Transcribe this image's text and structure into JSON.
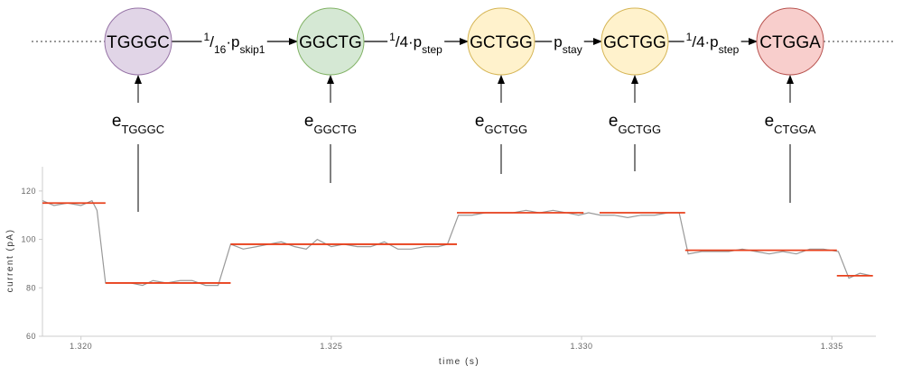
{
  "diagram": {
    "nodes": [
      {
        "label": "TGGGC",
        "fill": "#e1d5e7",
        "stroke": "#9673a6"
      },
      {
        "label": "GGCTG",
        "fill": "#d5e8d4",
        "stroke": "#82b366"
      },
      {
        "label": "GCTGG",
        "fill": "#fff2cc",
        "stroke": "#d6b656"
      },
      {
        "label": "GCTGG",
        "fill": "#fff2cc",
        "stroke": "#d6b656"
      },
      {
        "label": "CTGGA",
        "fill": "#f8cecc",
        "stroke": "#b85450"
      }
    ],
    "edges": [
      {
        "parts": [
          {
            "text": "1",
            "style": "super"
          },
          {
            "text": "/"
          },
          {
            "text": "16",
            "style": "sub"
          },
          {
            "text": "·p"
          },
          {
            "text": "skip1",
            "style": "sub"
          }
        ]
      },
      {
        "parts": [
          {
            "text": "1",
            "style": "super"
          },
          {
            "text": "/4·p"
          },
          {
            "text": "step",
            "style": "sub"
          }
        ]
      },
      {
        "parts": [
          {
            "text": "p"
          },
          {
            "text": "stay",
            "style": "sub"
          }
        ]
      },
      {
        "parts": [
          {
            "text": "1",
            "style": "super"
          },
          {
            "text": "/4·p"
          },
          {
            "text": "step",
            "style": "sub"
          }
        ]
      }
    ],
    "emissions": [
      {
        "base": "e",
        "sub": "TGGGC"
      },
      {
        "base": "e",
        "sub": "GGCTG"
      },
      {
        "base": "e",
        "sub": "GCTGG"
      },
      {
        "base": "e",
        "sub": "GCTGG"
      },
      {
        "base": "e",
        "sub": "CTGGA"
      }
    ]
  },
  "chart_data": {
    "type": "line",
    "xlabel": "time (s)",
    "ylabel": "current (pA)",
    "xlim": [
      1.31923,
      1.33588
    ],
    "ylim": [
      60,
      130
    ],
    "xticks": [
      {
        "value": 1.32,
        "label": "1.320"
      },
      {
        "value": 1.325,
        "label": "1.325"
      },
      {
        "value": 1.33,
        "label": "1.330"
      },
      {
        "value": 1.335,
        "label": "1.335"
      }
    ],
    "yticks": [
      60,
      80,
      100,
      120
    ],
    "signal": {
      "color": "#999999",
      "x": [
        1.31923,
        1.31946,
        1.31973,
        1.32,
        1.32022,
        1.32032,
        1.32049,
        1.32072,
        1.32099,
        1.32123,
        1.32144,
        1.32171,
        1.32198,
        1.32222,
        1.32249,
        1.32274,
        1.32299,
        1.32324,
        1.32351,
        1.32375,
        1.324,
        1.32427,
        1.3245,
        1.32472,
        1.325,
        1.32525,
        1.32552,
        1.32579,
        1.32606,
        1.32633,
        1.3266,
        1.32687,
        1.32714,
        1.32732,
        1.32754,
        1.32781,
        1.32808,
        1.32835,
        1.32862,
        1.32889,
        1.32916,
        1.32943,
        1.3297,
        1.32994,
        1.33014,
        1.33038,
        1.33065,
        1.33092,
        1.33119,
        1.33146,
        1.33173,
        1.33195,
        1.33213,
        1.3324,
        1.33267,
        1.33294,
        1.33321,
        1.33348,
        1.33375,
        1.33402,
        1.33429,
        1.33456,
        1.33483,
        1.33513,
        1.33534,
        1.33556,
        1.33579
      ],
      "values": [
        116,
        114,
        115,
        114,
        116,
        112,
        82,
        82,
        82,
        81,
        83,
        82,
        83,
        83,
        81,
        81,
        98,
        96,
        97,
        98,
        99,
        97,
        96,
        100,
        97,
        98,
        97,
        97,
        99,
        96,
        96,
        97,
        97,
        98,
        110,
        110,
        111,
        111,
        111,
        112,
        111,
        112,
        111,
        110,
        111,
        110,
        110,
        109,
        110,
        110,
        111,
        111,
        94,
        95,
        95,
        95,
        96,
        95,
        94,
        95,
        94,
        96,
        96,
        95,
        84,
        86,
        85
      ]
    },
    "segments": {
      "color": "#e8401c",
      "x_start": [
        1.31923,
        1.32049,
        1.32299,
        1.32751,
        1.33036,
        1.33207,
        1.3351
      ],
      "x_end": [
        1.32049,
        1.32299,
        1.32751,
        1.33004,
        1.33207,
        1.3351,
        1.33582
      ],
      "values": [
        115,
        82,
        98,
        111,
        111,
        95.5,
        85
      ]
    }
  }
}
